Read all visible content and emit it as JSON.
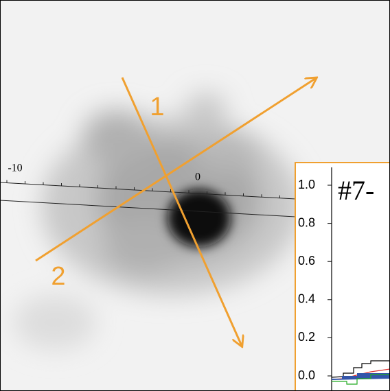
{
  "image": {
    "scale_labels": [
      "-10",
      "0"
    ],
    "arrow_labels": [
      "1",
      "2"
    ]
  },
  "inset": {
    "title": "#7-",
    "yticks": [
      "0.0",
      "0.2",
      "0.4",
      "0.6",
      "0.8",
      "1.0"
    ]
  }
}
